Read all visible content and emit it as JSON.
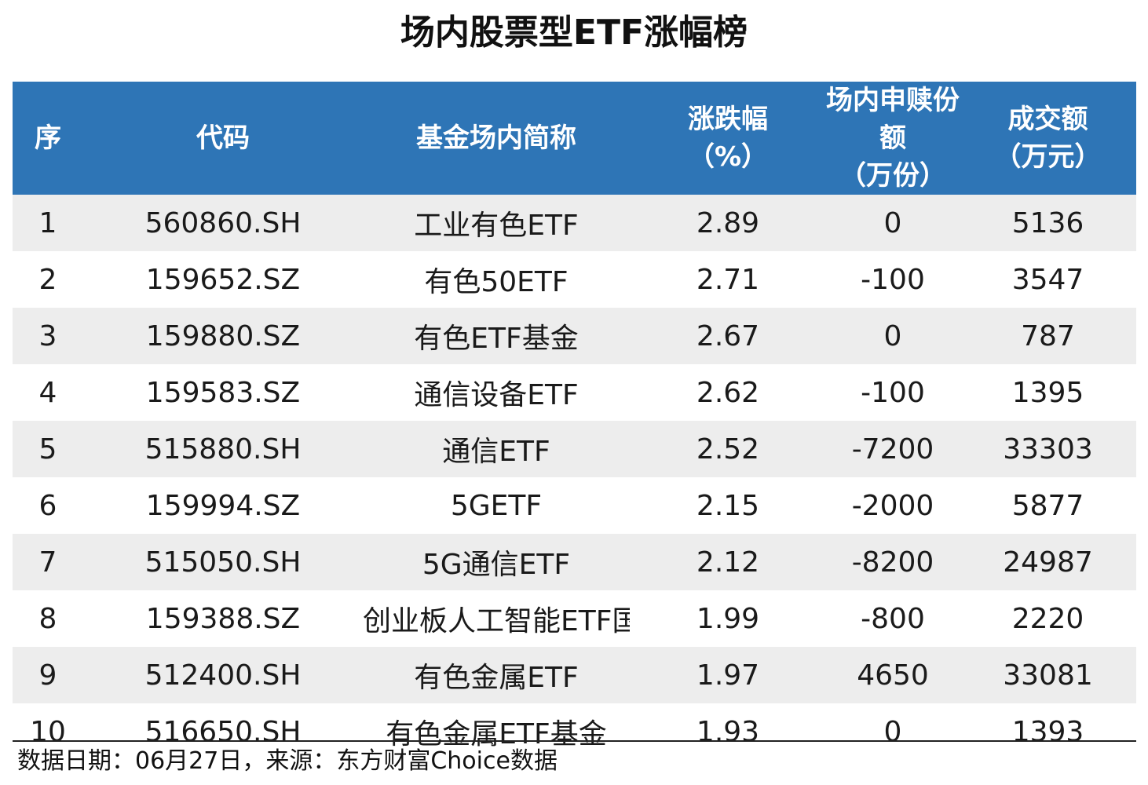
{
  "title": "场内股票型ETF涨幅榜",
  "table": {
    "headers": [
      {
        "line1": "序",
        "line2": ""
      },
      {
        "line1": "代码",
        "line2": ""
      },
      {
        "line1": "基金场内简称",
        "line2": ""
      },
      {
        "line1": "涨跌幅",
        "line2": "（%）"
      },
      {
        "line1": "场内申赎份额",
        "line2": "（万份）"
      },
      {
        "line1": "成交额",
        "line2": "（万元）"
      }
    ],
    "rows": [
      [
        "1",
        "560860.SH",
        "工业有色ETF",
        "2.89",
        "0",
        "5136"
      ],
      [
        "2",
        "159652.SZ",
        "有色50ETF",
        "2.71",
        "-100",
        "3547"
      ],
      [
        "3",
        "159880.SZ",
        "有色ETF基金",
        "2.67",
        "0",
        "787"
      ],
      [
        "4",
        "159583.SZ",
        "通信设备ETF",
        "2.62",
        "-100",
        "1395"
      ],
      [
        "5",
        "515880.SH",
        "通信ETF",
        "2.52",
        "-7200",
        "33303"
      ],
      [
        "6",
        "159994.SZ",
        "5GETF",
        "2.15",
        "-2000",
        "5877"
      ],
      [
        "7",
        "515050.SH",
        "5G通信ETF",
        "2.12",
        "-8200",
        "24987"
      ],
      [
        "8",
        "159388.SZ",
        "创业板人工智能ETF国泰",
        "1.99",
        "-800",
        "2220"
      ],
      [
        "9",
        "512400.SH",
        "有色金属ETF",
        "1.97",
        "4650",
        "33081"
      ],
      [
        "10",
        "516650.SH",
        "有色金属ETF基金",
        "1.93",
        "0",
        "1393"
      ]
    ]
  },
  "footer": "数据日期：06月27日，来源：东方财富Choice数据",
  "colors": {
    "header_bg": "#2e75b6",
    "header_text": "#ffffff",
    "row_stripe": "#ededed"
  },
  "chart_data": {
    "type": "table",
    "title": "场内股票型ETF涨幅榜",
    "columns": [
      "序",
      "代码",
      "基金场内简称",
      "涨跌幅（%）",
      "场内申赎份额（万份）",
      "成交额（万元）"
    ],
    "rank": [
      1,
      2,
      3,
      4,
      5,
      6,
      7,
      8,
      9,
      10
    ],
    "codes": [
      "560860.SH",
      "159652.SZ",
      "159880.SZ",
      "159583.SZ",
      "515880.SH",
      "159994.SZ",
      "515050.SH",
      "159388.SZ",
      "512400.SH",
      "516650.SH"
    ],
    "names": [
      "工业有色ETF",
      "有色50ETF",
      "有色ETF基金",
      "通信设备ETF",
      "通信ETF",
      "5GETF",
      "5G通信ETF",
      "创业板人工智能ETF国泰",
      "有色金属ETF",
      "有色金属ETF基金"
    ],
    "change_pct": [
      2.89,
      2.71,
      2.67,
      2.62,
      2.52,
      2.15,
      2.12,
      1.99,
      1.97,
      1.93
    ],
    "net_creation_10k_shares": [
      0,
      -100,
      0,
      -100,
      -7200,
      -2000,
      -8200,
      -800,
      4650,
      0
    ],
    "turnover_10k_yuan": [
      5136,
      3547,
      787,
      1395,
      33303,
      5877,
      24987,
      2220,
      33081,
      1393
    ]
  }
}
